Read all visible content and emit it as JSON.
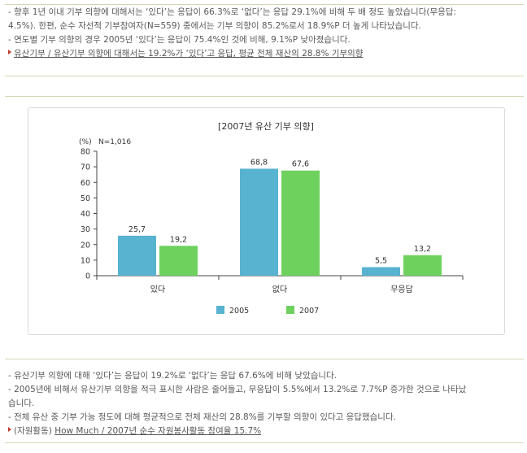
{
  "top_paragraph": {
    "lines": [
      "- 향후 1년 이내 기부 의향에 대해서는 ‘있다’는 응답이 66.3%로 ‘없다’는 응답 29.1%에 비해 두 배 정도 높았습니다(무응답:",
      "4.5%). 한편, 순수 자선적 기부참여자(N=559) 중에서는 기부 의향이 85.2%로서 18.9%P 더 높게 나타났습니다.",
      "- 연도별 기부 의향의 경우 2005년 ‘있다’는 응답이 75.4%인 것에 비해, 9.1%P 낮아졌습니다."
    ],
    "link": "유산기부 / 유산기부 의향에 대해서는 19.2%가 ‘있다’고 응답, 평균 전체 재산의 28.8% 기부의향"
  },
  "bottom_paragraph": {
    "lines": [
      "- 유산기부 의향에 대해 ‘있다’는 응답이 19.2%로 ‘없다’는 응답 67.6%에 비해 낮았습니다.",
      "- 2005년에 비해서 유산기부 의향을 적극 표시한 사람은 줄어들고, 무응답이 5.5%에서 13.2%로 7.7%P 증가한 것으로 나타났",
      "습니다.",
      "- 전체 유산 중 기부 가능 정도에 대해 평균적으로 전체 재산의 28.8%를 기부할 의향이 있다고 응답했습니다."
    ],
    "link_prefix": "(자원활동)",
    "link": "How Much / 2007년 순수 자원봉사활동 참여율 15.7%"
  },
  "chart_data": {
    "type": "bar",
    "title": "[2007년 유산 기부 의향]",
    "unit_label": "(%)",
    "sample_note": "N=1,016",
    "categories": [
      "있다",
      "없다",
      "무응답"
    ],
    "series": [
      {
        "name": "2005",
        "values": [
          25.7,
          68.8,
          5.5
        ],
        "labels": [
          "25,7",
          "68,8",
          "5,5"
        ],
        "color": "#58b3d0"
      },
      {
        "name": "2007",
        "values": [
          19.2,
          67.6,
          13.2
        ],
        "labels": [
          "19,2",
          "67,6",
          "13,2"
        ],
        "color": "#6ed15e"
      }
    ],
    "yticks": [
      0,
      10,
      20,
      30,
      40,
      50,
      60,
      70,
      80
    ],
    "ylim": [
      0,
      80
    ],
    "legend_position": "bottom",
    "grid": false
  },
  "colors": {
    "rule": "#d6d6b8",
    "link_marker": "#c0392b"
  }
}
